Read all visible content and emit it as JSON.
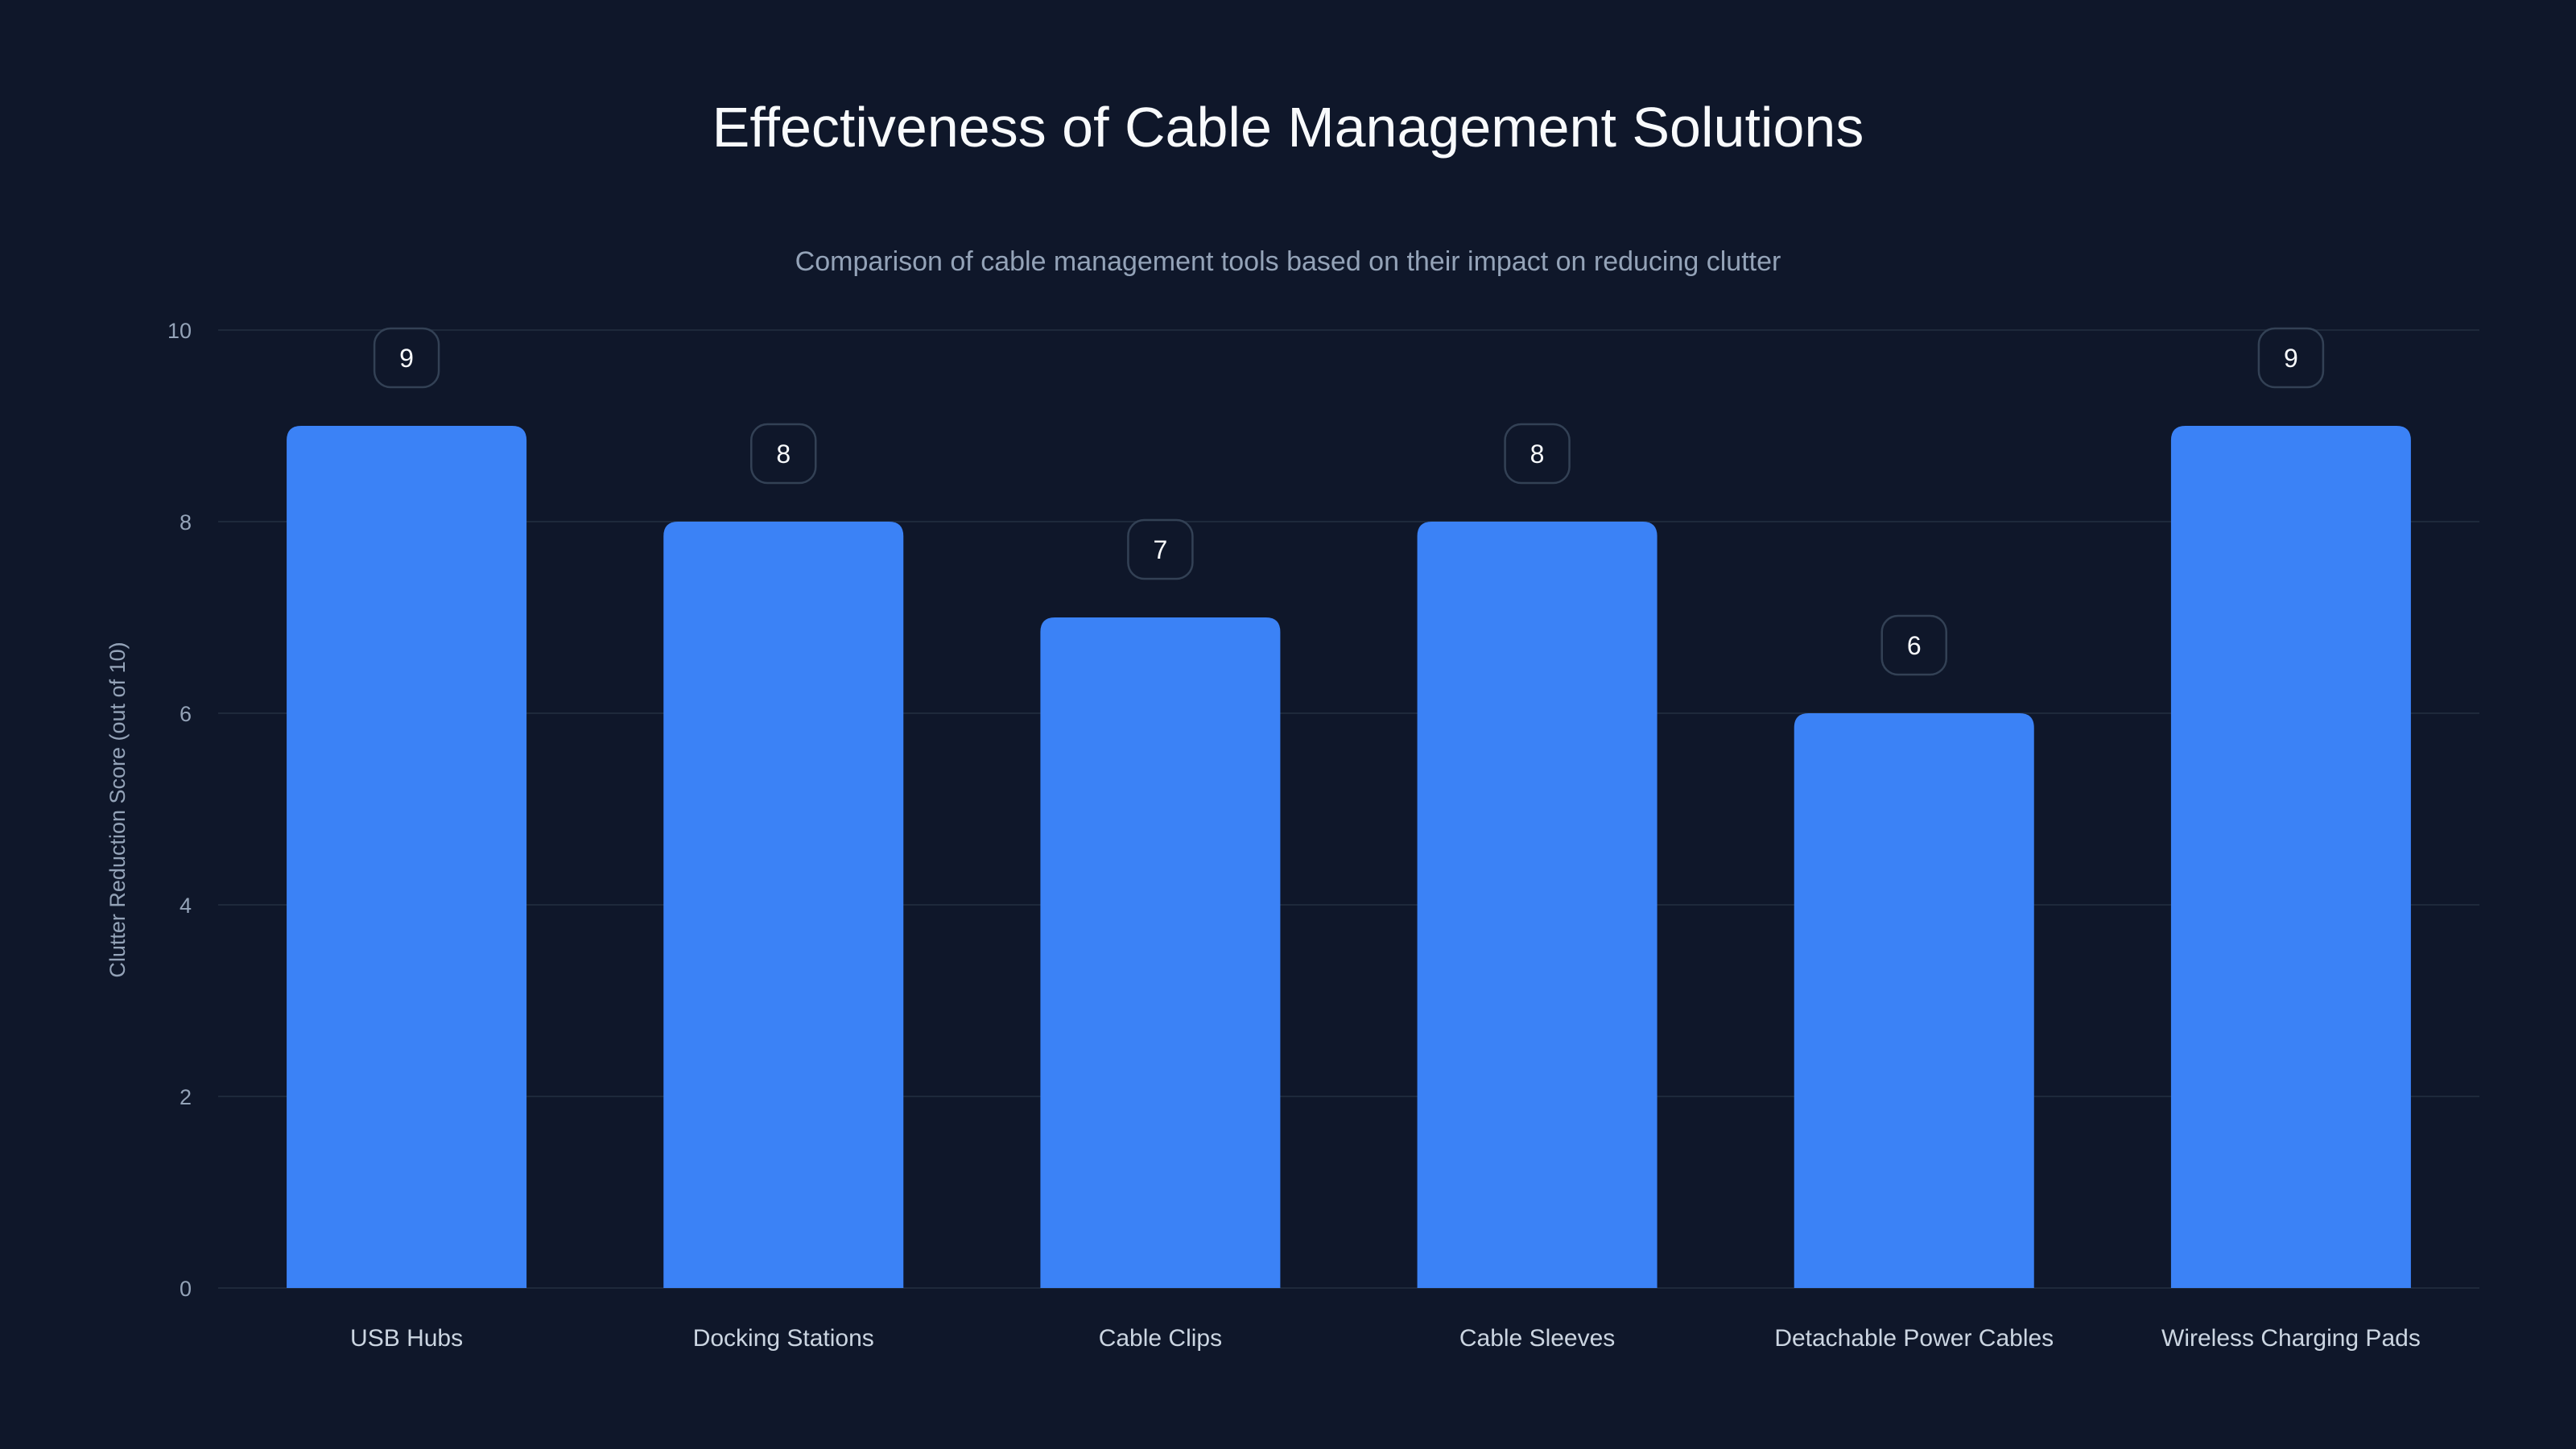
{
  "chart_data": {
    "type": "bar",
    "title": "Effectiveness of Cable Management Solutions",
    "subtitle": "Comparison of cable management tools based on their impact on reducing clutter",
    "xlabel": "",
    "ylabel": "Clutter Reduction Score (out of 10)",
    "ylim": [
      0,
      10
    ],
    "yticks": [
      0,
      2,
      4,
      6,
      8,
      10
    ],
    "grid": true,
    "categories": [
      "USB Hubs",
      "Docking Stations",
      "Cable Clips",
      "Cable Sleeves",
      "Detachable Power Cables",
      "Wireless Charging Pads"
    ],
    "values": [
      9,
      8,
      7,
      8,
      6,
      9
    ],
    "colors": {
      "bar": "#3b82f6",
      "background": "#0f172a",
      "grid": "#1e293b",
      "tick_text": "#94a3b8",
      "label_border": "#334155"
    }
  }
}
